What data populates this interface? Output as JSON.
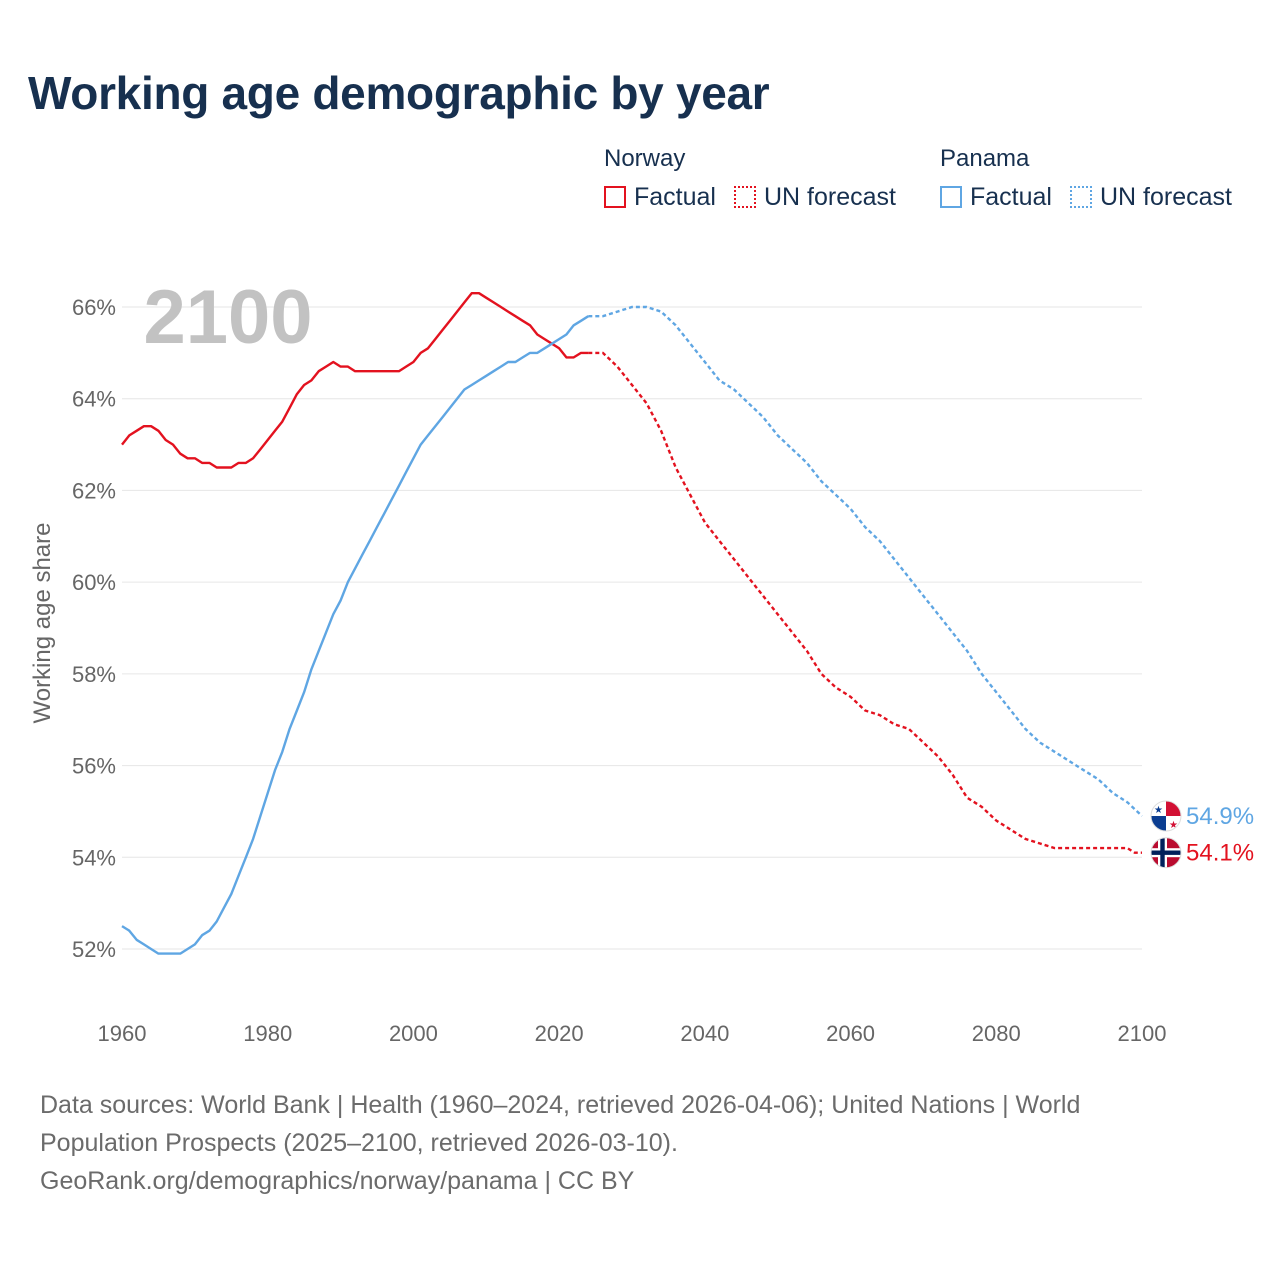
{
  "title": "Working age demographic by year",
  "legend": [
    {
      "country": "Norway",
      "factual_label": "Factual",
      "forecast_label": "UN forecast",
      "color": "#e3121f"
    },
    {
      "country": "Panama",
      "factual_label": "Factual",
      "forecast_label": "UN forecast",
      "color": "#5fa6e3"
    }
  ],
  "colors": {
    "norway": "#e3121f",
    "panama": "#5fa6e3",
    "text": "#17304f",
    "axis_text": "#666666",
    "grid": "#e6e6e6",
    "year_watermark": "#c2c2c2"
  },
  "footer": {
    "line1": "Data sources: World Bank | Health (1960–2024, retrieved 2026-04-06); United Nations | World",
    "line2": "Population Prospects (2025–2100, retrieved 2026-03-10).",
    "line3": "GeoRank.org/demographics/norway/panama | CC BY"
  },
  "chart_data": {
    "type": "line",
    "title": "Working age demographic by year",
    "current_year_label": "2100",
    "xlabel": "",
    "ylabel": "Working age share",
    "xlim": [
      1960,
      2100
    ],
    "ylim": [
      51,
      67
    ],
    "x_ticks": [
      "1960",
      "1980",
      "2000",
      "2020",
      "2040",
      "2060",
      "2080",
      "2100"
    ],
    "y_ticks": [
      "52%",
      "54%",
      "56%",
      "58%",
      "60%",
      "62%",
      "64%",
      "66%"
    ],
    "y_tick_values": [
      52,
      54,
      56,
      58,
      60,
      62,
      64,
      66
    ],
    "grid": true,
    "factual_end_year": 2024,
    "series": [
      {
        "name": "Norway",
        "color": "#e3121f",
        "end_label": "54.1%",
        "end_icon": "norway-flag-icon",
        "points": [
          [
            1960,
            63.0
          ],
          [
            1961,
            63.2
          ],
          [
            1962,
            63.3
          ],
          [
            1963,
            63.4
          ],
          [
            1964,
            63.4
          ],
          [
            1965,
            63.3
          ],
          [
            1966,
            63.1
          ],
          [
            1967,
            63.0
          ],
          [
            1968,
            62.8
          ],
          [
            1969,
            62.7
          ],
          [
            1970,
            62.7
          ],
          [
            1971,
            62.6
          ],
          [
            1972,
            62.6
          ],
          [
            1973,
            62.5
          ],
          [
            1974,
            62.5
          ],
          [
            1975,
            62.5
          ],
          [
            1976,
            62.6
          ],
          [
            1977,
            62.6
          ],
          [
            1978,
            62.7
          ],
          [
            1979,
            62.9
          ],
          [
            1980,
            63.1
          ],
          [
            1981,
            63.3
          ],
          [
            1982,
            63.5
          ],
          [
            1983,
            63.8
          ],
          [
            1984,
            64.1
          ],
          [
            1985,
            64.3
          ],
          [
            1986,
            64.4
          ],
          [
            1987,
            64.6
          ],
          [
            1988,
            64.7
          ],
          [
            1989,
            64.8
          ],
          [
            1990,
            64.7
          ],
          [
            1991,
            64.7
          ],
          [
            1992,
            64.6
          ],
          [
            1993,
            64.6
          ],
          [
            1994,
            64.6
          ],
          [
            1995,
            64.6
          ],
          [
            1996,
            64.6
          ],
          [
            1997,
            64.6
          ],
          [
            1998,
            64.6
          ],
          [
            1999,
            64.7
          ],
          [
            2000,
            64.8
          ],
          [
            2001,
            65.0
          ],
          [
            2002,
            65.1
          ],
          [
            2003,
            65.3
          ],
          [
            2004,
            65.5
          ],
          [
            2005,
            65.7
          ],
          [
            2006,
            65.9
          ],
          [
            2007,
            66.1
          ],
          [
            2008,
            66.3
          ],
          [
            2009,
            66.3
          ],
          [
            2010,
            66.2
          ],
          [
            2011,
            66.1
          ],
          [
            2012,
            66.0
          ],
          [
            2013,
            65.9
          ],
          [
            2014,
            65.8
          ],
          [
            2015,
            65.7
          ],
          [
            2016,
            65.6
          ],
          [
            2017,
            65.4
          ],
          [
            2018,
            65.3
          ],
          [
            2019,
            65.2
          ],
          [
            2020,
            65.1
          ],
          [
            2021,
            64.9
          ],
          [
            2022,
            64.9
          ],
          [
            2023,
            65.0
          ],
          [
            2024,
            65.0
          ],
          [
            2025,
            65.0
          ],
          [
            2026,
            65.0
          ],
          [
            2028,
            64.7
          ],
          [
            2030,
            64.3
          ],
          [
            2032,
            63.9
          ],
          [
            2034,
            63.3
          ],
          [
            2036,
            62.5
          ],
          [
            2038,
            61.9
          ],
          [
            2040,
            61.3
          ],
          [
            2042,
            60.9
          ],
          [
            2044,
            60.5
          ],
          [
            2046,
            60.1
          ],
          [
            2048,
            59.7
          ],
          [
            2050,
            59.3
          ],
          [
            2052,
            58.9
          ],
          [
            2054,
            58.5
          ],
          [
            2056,
            58.0
          ],
          [
            2058,
            57.7
          ],
          [
            2060,
            57.5
          ],
          [
            2062,
            57.2
          ],
          [
            2064,
            57.1
          ],
          [
            2066,
            56.9
          ],
          [
            2068,
            56.8
          ],
          [
            2070,
            56.5
          ],
          [
            2072,
            56.2
          ],
          [
            2074,
            55.8
          ],
          [
            2076,
            55.3
          ],
          [
            2078,
            55.1
          ],
          [
            2080,
            54.8
          ],
          [
            2082,
            54.6
          ],
          [
            2084,
            54.4
          ],
          [
            2086,
            54.3
          ],
          [
            2088,
            54.2
          ],
          [
            2090,
            54.2
          ],
          [
            2092,
            54.2
          ],
          [
            2094,
            54.2
          ],
          [
            2096,
            54.2
          ],
          [
            2098,
            54.2
          ],
          [
            2099,
            54.1
          ],
          [
            2100,
            54.1
          ]
        ]
      },
      {
        "name": "Panama",
        "color": "#5fa6e3",
        "end_label": "54.9%",
        "end_icon": "panama-flag-icon",
        "points": [
          [
            1960,
            52.5
          ],
          [
            1961,
            52.4
          ],
          [
            1962,
            52.2
          ],
          [
            1963,
            52.1
          ],
          [
            1964,
            52.0
          ],
          [
            1965,
            51.9
          ],
          [
            1966,
            51.9
          ],
          [
            1967,
            51.9
          ],
          [
            1968,
            51.9
          ],
          [
            1969,
            52.0
          ],
          [
            1970,
            52.1
          ],
          [
            1971,
            52.3
          ],
          [
            1972,
            52.4
          ],
          [
            1973,
            52.6
          ],
          [
            1974,
            52.9
          ],
          [
            1975,
            53.2
          ],
          [
            1976,
            53.6
          ],
          [
            1977,
            54.0
          ],
          [
            1978,
            54.4
          ],
          [
            1979,
            54.9
          ],
          [
            1980,
            55.4
          ],
          [
            1981,
            55.9
          ],
          [
            1982,
            56.3
          ],
          [
            1983,
            56.8
          ],
          [
            1984,
            57.2
          ],
          [
            1985,
            57.6
          ],
          [
            1986,
            58.1
          ],
          [
            1987,
            58.5
          ],
          [
            1988,
            58.9
          ],
          [
            1989,
            59.3
          ],
          [
            1990,
            59.6
          ],
          [
            1991,
            60.0
          ],
          [
            1992,
            60.3
          ],
          [
            1993,
            60.6
          ],
          [
            1994,
            60.9
          ],
          [
            1995,
            61.2
          ],
          [
            1996,
            61.5
          ],
          [
            1997,
            61.8
          ],
          [
            1998,
            62.1
          ],
          [
            1999,
            62.4
          ],
          [
            2000,
            62.7
          ],
          [
            2001,
            63.0
          ],
          [
            2002,
            63.2
          ],
          [
            2003,
            63.4
          ],
          [
            2004,
            63.6
          ],
          [
            2005,
            63.8
          ],
          [
            2006,
            64.0
          ],
          [
            2007,
            64.2
          ],
          [
            2008,
            64.3
          ],
          [
            2009,
            64.4
          ],
          [
            2010,
            64.5
          ],
          [
            2011,
            64.6
          ],
          [
            2012,
            64.7
          ],
          [
            2013,
            64.8
          ],
          [
            2014,
            64.8
          ],
          [
            2015,
            64.9
          ],
          [
            2016,
            65.0
          ],
          [
            2017,
            65.0
          ],
          [
            2018,
            65.1
          ],
          [
            2019,
            65.2
          ],
          [
            2020,
            65.3
          ],
          [
            2021,
            65.4
          ],
          [
            2022,
            65.6
          ],
          [
            2023,
            65.7
          ],
          [
            2024,
            65.8
          ],
          [
            2025,
            65.8
          ],
          [
            2026,
            65.8
          ],
          [
            2028,
            65.9
          ],
          [
            2030,
            66.0
          ],
          [
            2032,
            66.0
          ],
          [
            2034,
            65.9
          ],
          [
            2036,
            65.6
          ],
          [
            2038,
            65.2
          ],
          [
            2040,
            64.8
          ],
          [
            2042,
            64.4
          ],
          [
            2044,
            64.2
          ],
          [
            2046,
            63.9
          ],
          [
            2048,
            63.6
          ],
          [
            2050,
            63.2
          ],
          [
            2052,
            62.9
          ],
          [
            2054,
            62.6
          ],
          [
            2056,
            62.2
          ],
          [
            2058,
            61.9
          ],
          [
            2060,
            61.6
          ],
          [
            2062,
            61.2
          ],
          [
            2064,
            60.9
          ],
          [
            2066,
            60.5
          ],
          [
            2068,
            60.1
          ],
          [
            2070,
            59.7
          ],
          [
            2072,
            59.3
          ],
          [
            2074,
            58.9
          ],
          [
            2076,
            58.5
          ],
          [
            2078,
            58.0
          ],
          [
            2080,
            57.6
          ],
          [
            2082,
            57.2
          ],
          [
            2084,
            56.8
          ],
          [
            2086,
            56.5
          ],
          [
            2088,
            56.3
          ],
          [
            2090,
            56.1
          ],
          [
            2092,
            55.9
          ],
          [
            2094,
            55.7
          ],
          [
            2096,
            55.4
          ],
          [
            2098,
            55.2
          ],
          [
            2100,
            54.9
          ]
        ]
      }
    ]
  }
}
